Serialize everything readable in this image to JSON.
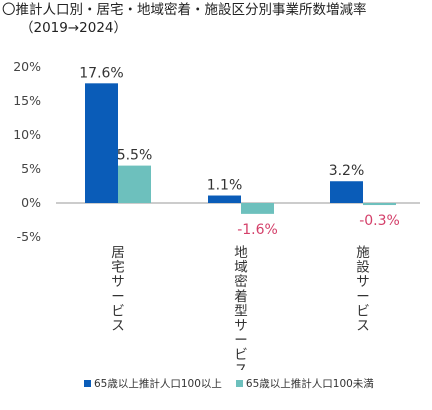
{
  "title": "〇推計人口別・居宅・地域密着・施設区分別事業所数増減率",
  "subtitle": "（2019→2024）",
  "colors": {
    "series1": "#0a5cb8",
    "series2": "#6dc0bd",
    "positive_label": "#333333",
    "negative_label": "#d4406a",
    "zero_line": "#9a9a9a"
  },
  "chart_data": {
    "type": "bar",
    "categories": [
      "居宅サービス",
      "地域密着型サービス",
      "施設サービス"
    ],
    "series": [
      {
        "name": "65歳以上推計人口100以上",
        "values": [
          17.6,
          1.1,
          3.2
        ]
      },
      {
        "name": "65歳以上推計人口100未満",
        "values": [
          5.5,
          -1.6,
          -0.3
        ]
      }
    ],
    "data_labels": [
      [
        "17.6%",
        "1.1%",
        "3.2%"
      ],
      [
        "5.5%",
        "-1.6%",
        "-0.3%"
      ]
    ],
    "yticks": [
      "20%",
      "15%",
      "10%",
      "5%",
      "0%",
      "-5%"
    ],
    "ytick_values": [
      20,
      15,
      10,
      5,
      0,
      -5
    ],
    "ylim": [
      -5,
      20
    ],
    "grid": false,
    "legend": "bottom"
  }
}
